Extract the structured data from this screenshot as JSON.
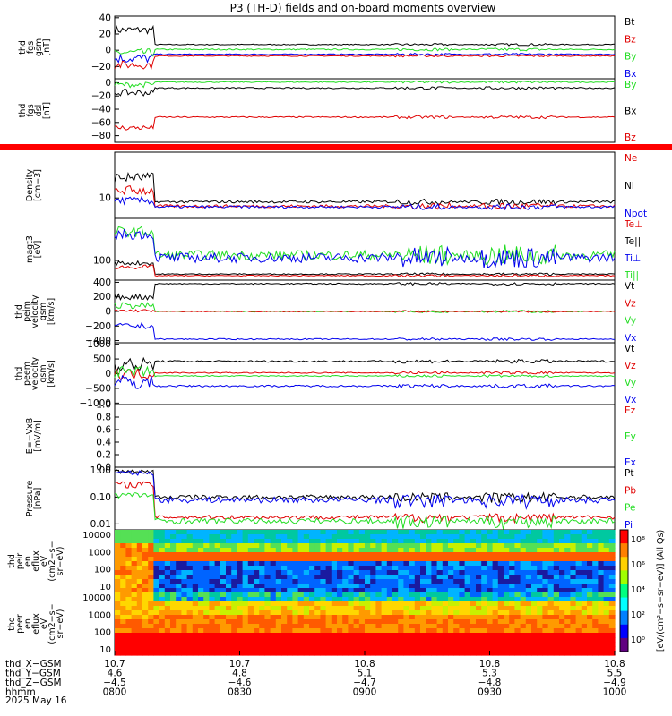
{
  "chart_data": {
    "type": "line",
    "title": "P3 (TH-D) fields and on-board moments overview",
    "colors": {
      "black": "#000000",
      "red": "#e00000",
      "green": "#22dd22",
      "blue": "#0000ee"
    },
    "panels": [
      {
        "id": "fgs-gsm",
        "ylabel": [
          "thd",
          "fgs",
          "gsm",
          "[nT]"
        ],
        "ylim": [
          -35,
          42
        ],
        "yticks": [
          {
            "v": 40,
            "label": "40"
          },
          {
            "v": 20,
            "label": "20"
          },
          {
            "v": 0,
            "label": "0"
          },
          {
            "v": -20,
            "label": "−20"
          }
        ],
        "legend": [
          {
            "name": "Bt",
            "color": "black"
          },
          {
            "name": "Bz",
            "color": "red"
          },
          {
            "name": "By",
            "color": "green"
          },
          {
            "name": "Bx",
            "color": "blue"
          }
        ],
        "series": [
          {
            "name": "Bt",
            "color": "black",
            "before": 25,
            "after": 7,
            "noise_before": 5,
            "noise_after": 0.6
          },
          {
            "name": "By",
            "color": "green",
            "before": -3,
            "after": 1,
            "noise_before": 5,
            "noise_after": 0.8
          },
          {
            "name": "Bx",
            "color": "blue",
            "before": -10,
            "after": -5,
            "noise_before": 6,
            "noise_after": 0.6
          },
          {
            "name": "Bz",
            "color": "red",
            "before": -18,
            "after": -7,
            "noise_before": 5,
            "noise_after": 0.6
          }
        ]
      },
      {
        "id": "fgs-dsl",
        "ylabel": [
          "thd",
          "fgs",
          "dsl",
          "[nT]"
        ],
        "ylim": [
          -90,
          6
        ],
        "yticks": [
          {
            "v": 0,
            "label": "0"
          },
          {
            "v": -20,
            "label": "−20"
          },
          {
            "v": -40,
            "label": "−40"
          },
          {
            "v": -60,
            "label": "−60"
          },
          {
            "v": -80,
            "label": "−80"
          }
        ],
        "legend": [
          {
            "name": "By",
            "color": "green"
          },
          {
            "name": "Bx",
            "color": "black"
          },
          {
            "name": "Bz",
            "color": "red"
          }
        ],
        "series": [
          {
            "name": "By",
            "color": "green",
            "before": -3,
            "after": 1,
            "noise_before": 4,
            "noise_after": 0.8
          },
          {
            "name": "Bx",
            "color": "black",
            "before": -15,
            "after": -8,
            "noise_before": 5,
            "noise_after": 1
          },
          {
            "name": "Bz",
            "color": "red",
            "before": -68,
            "after": -52,
            "noise_before": 4,
            "noise_after": 1
          }
        ]
      },
      {
        "id": "density",
        "ylabel": [
          "Density",
          "[cm−3]"
        ],
        "ylim": [
          2,
          28
        ],
        "yticks": [
          {
            "v": 10,
            "label": "10"
          }
        ],
        "legend": [
          {
            "name": "Ne",
            "color": "red"
          },
          {
            "name": "Ni",
            "color": "black"
          },
          {
            "name": "Npot",
            "color": "blue"
          }
        ],
        "series": [
          {
            "name": "Ni",
            "color": "black",
            "before": 18,
            "after": 8.5,
            "noise_before": 2,
            "noise_after": 0.5
          },
          {
            "name": "Ne",
            "color": "red",
            "before": 13,
            "after": 6.8,
            "noise_before": 2,
            "noise_after": 0.6
          },
          {
            "name": "Npot",
            "color": "blue",
            "before": 9,
            "after": 6.5,
            "noise_before": 1.5,
            "noise_after": 0.5
          }
        ]
      },
      {
        "id": "temperature",
        "ylabel": [
          "magt3",
          "[eV]"
        ],
        "ylim": [
          25,
          260
        ],
        "yticks": [
          {
            "v": 100,
            "label": "100"
          }
        ],
        "legend": [
          {
            "name": "Te⊥",
            "color": "red"
          },
          {
            "name": "Te||",
            "color": "black"
          },
          {
            "name": "Ti⊥",
            "color": "blue"
          },
          {
            "name": "Ti||",
            "color": "green"
          }
        ],
        "series": [
          {
            "name": "Ti||",
            "color": "green",
            "before": 210,
            "after": 120,
            "noise_before": 20,
            "noise_after": 18
          },
          {
            "name": "Ti⊥",
            "color": "blue",
            "before": 200,
            "after": 110,
            "noise_before": 20,
            "noise_after": 18
          },
          {
            "name": "Te||",
            "color": "black",
            "before": 90,
            "after": 48,
            "noise_before": 8,
            "noise_after": 2
          },
          {
            "name": "Te⊥",
            "color": "red",
            "before": 75,
            "after": 42,
            "noise_before": 8,
            "noise_after": 2
          }
        ]
      },
      {
        "id": "peim-velocity",
        "ylabel": [
          "thd",
          "peim",
          "velocity",
          "gsm",
          "[km/s]"
        ],
        "ylim": [
          -430,
          430
        ],
        "yticks": [
          {
            "v": 400,
            "label": "400"
          },
          {
            "v": 200,
            "label": "200"
          },
          {
            "v": 0,
            "label": "0"
          },
          {
            "v": -200,
            "label": "−200"
          },
          {
            "v": -400,
            "label": "−400"
          }
        ],
        "legend": [
          {
            "name": "Vt",
            "color": "black"
          },
          {
            "name": "Vz",
            "color": "red"
          },
          {
            "name": "Vy",
            "color": "green"
          },
          {
            "name": "Vx",
            "color": "blue"
          }
        ],
        "series": [
          {
            "name": "Vt",
            "color": "black",
            "before": 200,
            "after": 380,
            "noise_before": 40,
            "noise_after": 8
          },
          {
            "name": "Vy",
            "color": "green",
            "before": 80,
            "after": 0,
            "noise_before": 40,
            "noise_after": 8
          },
          {
            "name": "Vz",
            "color": "red",
            "before": 10,
            "after": 0,
            "noise_before": 20,
            "noise_after": 6
          },
          {
            "name": "Vx",
            "color": "blue",
            "before": -200,
            "after": -380,
            "noise_before": 40,
            "noise_after": 8
          }
        ]
      },
      {
        "id": "peem-velocity",
        "ylabel": [
          "thd",
          "peem",
          "velocity",
          "gsm",
          "[km/s]"
        ],
        "ylim": [
          -1050,
          1050
        ],
        "yticks": [
          {
            "v": 1000,
            "label": "1000"
          },
          {
            "v": 500,
            "label": "500"
          },
          {
            "v": 0,
            "label": "0"
          },
          {
            "v": -500,
            "label": "−500"
          },
          {
            "v": -1000,
            "label": "−1000"
          }
        ],
        "legend": [
          {
            "name": "Vt",
            "color": "black"
          },
          {
            "name": "Vz",
            "color": "red"
          },
          {
            "name": "Vy",
            "color": "green"
          },
          {
            "name": "Vx",
            "color": "blue"
          }
        ],
        "series": [
          {
            "name": "Vt",
            "color": "black",
            "before": 300,
            "after": 420,
            "noise_before": 250,
            "noise_after": 30
          },
          {
            "name": "Vz",
            "color": "red",
            "before": 0,
            "after": 30,
            "noise_before": 200,
            "noise_after": 20
          },
          {
            "name": "Vy",
            "color": "green",
            "before": 50,
            "after": -80,
            "noise_before": 200,
            "noise_after": 20
          },
          {
            "name": "Vx",
            "color": "blue",
            "before": -300,
            "after": -420,
            "noise_before": 250,
            "noise_after": 30
          }
        ]
      },
      {
        "id": "efield",
        "ylabel": [
          "E=−VxB",
          "[mV/m]"
        ],
        "ylim": [
          0,
          1
        ],
        "yticks": [
          {
            "v": 1,
            "label": "1.0"
          },
          {
            "v": 0.8,
            "label": "0.8"
          },
          {
            "v": 0.6,
            "label": "0.6"
          },
          {
            "v": 0.4,
            "label": "0.4"
          },
          {
            "v": 0.2,
            "label": "0.2"
          },
          {
            "v": 0,
            "label": "0.0"
          }
        ],
        "legend": [
          {
            "name": "Ez",
            "color": "red"
          },
          {
            "name": "Ey",
            "color": "green"
          },
          {
            "name": "Ex",
            "color": "blue"
          }
        ],
        "series": []
      },
      {
        "id": "pressure",
        "ylabel": [
          "Pressure",
          "[nPa]"
        ],
        "ylim": [
          0.006,
          1.3
        ],
        "log": true,
        "yticks": [
          {
            "v": 1,
            "label": "1.00"
          },
          {
            "v": 0.1,
            "label": "0.10"
          },
          {
            "v": 0.01,
            "label": "0.01"
          }
        ],
        "legend": [
          {
            "name": "Pt",
            "color": "black"
          },
          {
            "name": "Pb",
            "color": "red"
          },
          {
            "name": "Pe",
            "color": "green"
          },
          {
            "name": "Pi",
            "color": "blue"
          }
        ],
        "series": [
          {
            "name": "Pt",
            "color": "black",
            "before": 0.9,
            "after": 0.1,
            "noise_before": 0.15,
            "noise_after": 0.02
          },
          {
            "name": "Pi",
            "color": "blue",
            "before": 0.8,
            "after": 0.08,
            "noise_before": 0.15,
            "noise_after": 0.02
          },
          {
            "name": "Pb",
            "color": "red",
            "before": 0.3,
            "after": 0.018,
            "noise_before": 0.08,
            "noise_after": 0.003
          },
          {
            "name": "Pe",
            "color": "green",
            "before": 0.12,
            "after": 0.013,
            "noise_before": 0.03,
            "noise_after": 0.003
          }
        ]
      },
      {
        "id": "peir-spec",
        "type": "heatmap",
        "ylabel": [
          "thd",
          "peir",
          "en",
          "eflux",
          "eV",
          "(cm2−s−",
          "sr−eV)"
        ],
        "yticks": [
          {
            "label": "10000"
          },
          {
            "label": "1000"
          },
          {
            "label": "100"
          },
          {
            "label": "10"
          }
        ]
      },
      {
        "id": "peer-spec",
        "type": "heatmap",
        "ylabel": [
          "thd",
          "peer",
          "en",
          "eflux",
          "eV",
          "(cm2−s−",
          "sr−eV)"
        ],
        "yticks": [
          {
            "label": "10000"
          },
          {
            "label": "1000"
          },
          {
            "label": "100"
          },
          {
            "label": "10"
          }
        ]
      }
    ],
    "colorbar": {
      "label": "[eV/(cm²−s−sr−eV)] (All Qs)",
      "ticks": [
        "10⁸",
        "10⁶",
        "10⁴",
        "10²",
        "10⁰"
      ]
    },
    "x": {
      "range": [
        "0800",
        "1000"
      ],
      "tick_times": [
        "0800",
        "0830",
        "0900",
        "0930",
        "1000"
      ],
      "rows": [
        {
          "label": "thd_X−GSM",
          "values": [
            "10.7",
            "10.7",
            "10.8",
            "10.8",
            "10.8"
          ]
        },
        {
          "label": "thd_Y−GSM",
          "values": [
            "4.6",
            "4.8",
            "5.1",
            "5.3",
            "5.5"
          ]
        },
        {
          "label": "thd_Z−GSM",
          "values": [
            "−4.5",
            "−4.6",
            "−4.7",
            "−4.8",
            "−4.9"
          ]
        },
        {
          "label": "hhmm",
          "values": [
            "0800",
            "0830",
            "0900",
            "0930",
            "1000"
          ]
        }
      ],
      "date": "2025 May 16"
    }
  }
}
